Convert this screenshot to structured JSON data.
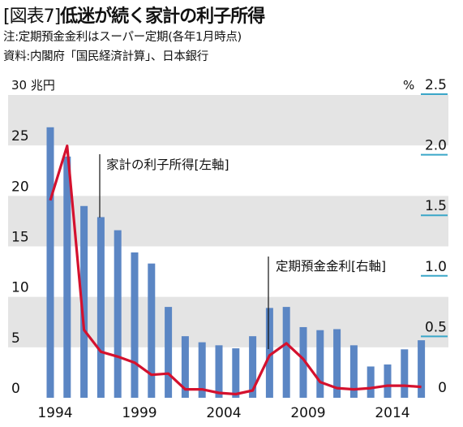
{
  "header": {
    "figure_tag": "[図表7]",
    "title": "低迷が続く家計の利子所得",
    "note": "注:定期預金金利はスーパー定期(各年1月時点)",
    "source": "資料:内閣府「国民経済計算」、日本銀行"
  },
  "colors": {
    "bar": "#5b86c4",
    "line": "#d4112e",
    "band": "#e4e4e4",
    "right_tick_underline": "#3aa6c8"
  },
  "chart_data": {
    "type": "bar",
    "x_tick_labels": [
      "1994",
      "1999",
      "2004",
      "2009",
      "2014"
    ],
    "left_axis": {
      "unit_label": "30 兆円",
      "ylim": [
        0,
        30
      ],
      "ticks": [
        "0",
        "5",
        "10",
        "15",
        "20",
        "25"
      ]
    },
    "right_axis": {
      "unit_label": "%",
      "ylim": [
        0,
        2.5
      ],
      "ticks": [
        "0",
        "0.5",
        "1.0",
        "1.5",
        "2.0",
        "2.5"
      ]
    },
    "grid_bands": true,
    "series": [
      {
        "name": "家計の利子所得[左軸]",
        "type": "bar",
        "axis": "left",
        "x": [
          1994,
          1995,
          1996,
          1997,
          1998,
          1999,
          2000,
          2001,
          2002,
          2003,
          2004,
          2005,
          2006,
          2007,
          2008,
          2009,
          2010,
          2011,
          2012,
          2013,
          2014,
          2015,
          2016
        ],
        "values": [
          26.8,
          23.9,
          19.0,
          17.9,
          16.6,
          14.4,
          13.3,
          9.0,
          6.1,
          5.5,
          5.2,
          4.9,
          6.1,
          8.9,
          9.0,
          7.0,
          6.7,
          6.8,
          5.2,
          3.1,
          3.3,
          4.8,
          5.7
        ]
      },
      {
        "name": "定期預金金利[右軸]",
        "type": "line",
        "axis": "right",
        "x": [
          1994,
          1995,
          1996,
          1997,
          1998,
          1999,
          2000,
          2001,
          2002,
          2003,
          2004,
          2005,
          2006,
          2007,
          2008,
          2009,
          2010,
          2011,
          2012,
          2013,
          2014,
          2015,
          2016
        ],
        "values": [
          1.63,
          2.08,
          0.56,
          0.38,
          0.34,
          0.29,
          0.19,
          0.2,
          0.07,
          0.07,
          0.04,
          0.03,
          0.06,
          0.35,
          0.45,
          0.32,
          0.13,
          0.08,
          0.07,
          0.08,
          0.1,
          0.1,
          0.09
        ]
      }
    ]
  }
}
